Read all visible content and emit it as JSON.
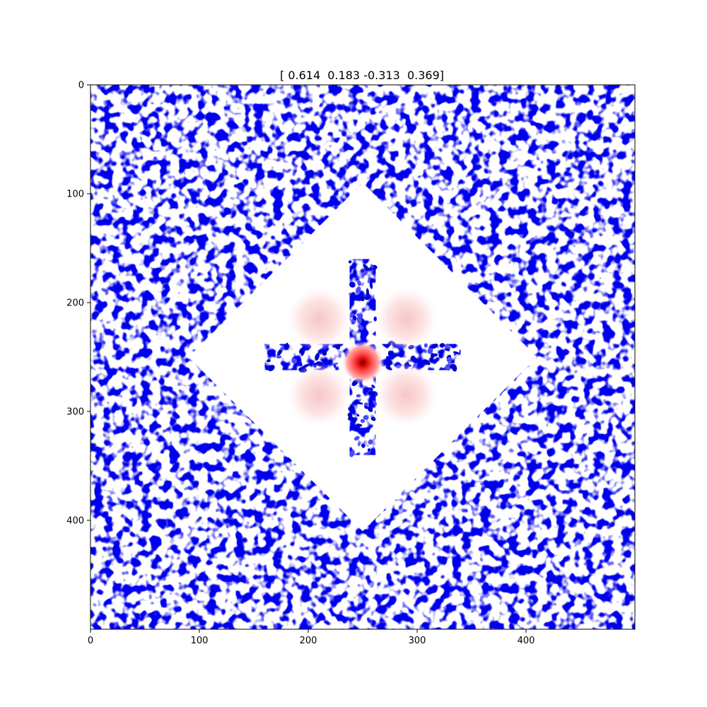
{
  "chart_data": {
    "type": "heatmap",
    "title": "[ 0.614  0.183 -0.313  0.369]",
    "xlabel": "",
    "ylabel": "",
    "xlim": [
      0,
      500
    ],
    "ylim": [
      500,
      0
    ],
    "x_ticks": [
      0,
      100,
      200,
      300,
      400
    ],
    "y_ticks": [
      0,
      100,
      200,
      300,
      400
    ],
    "grid": false,
    "legend": "none",
    "colormap": {
      "low": "#0000ff",
      "mid": "#ffffff",
      "high": "#ff0000",
      "peak": "#800000"
    },
    "features": {
      "central_peak": {
        "x": 250,
        "y": 255,
        "value": 1.0
      },
      "side_lobes": [
        {
          "x": 210,
          "y": 215,
          "value": 0.08
        },
        {
          "x": 290,
          "y": 215,
          "value": 0.08
        },
        {
          "x": 210,
          "y": 285,
          "value": 0.08
        },
        {
          "x": 290,
          "y": 285,
          "value": 0.08
        }
      ],
      "clear_region": {
        "shape": "diamond",
        "center": [
          250,
          250
        ],
        "half_width": 160
      },
      "background": "blue speckle noise"
    }
  }
}
